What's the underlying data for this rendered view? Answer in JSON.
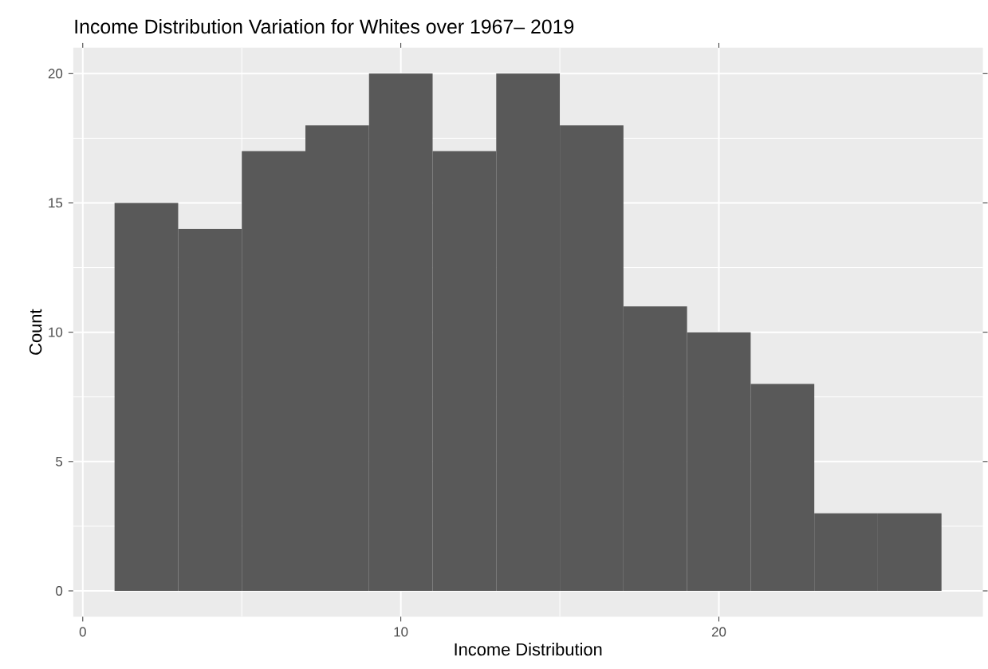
{
  "chart_data": {
    "type": "histogram",
    "title": "Income Distribution Variation for Whites over 1967– 2019",
    "xlabel": "Income Distribution",
    "ylabel": "Count",
    "bins": [
      1,
      3,
      5,
      7,
      9,
      11,
      13,
      15,
      17,
      19,
      21,
      23,
      25,
      27
    ],
    "values": [
      15,
      14,
      17,
      18,
      20,
      17,
      20,
      18,
      11,
      10,
      8,
      3,
      3
    ],
    "color": "#595959",
    "xlim": [
      -0.3,
      28.3
    ],
    "ylim": [
      -1,
      21
    ],
    "xticks": [
      0,
      10,
      20
    ],
    "yticks": [
      0,
      5,
      10,
      15,
      20
    ],
    "grid": true
  }
}
